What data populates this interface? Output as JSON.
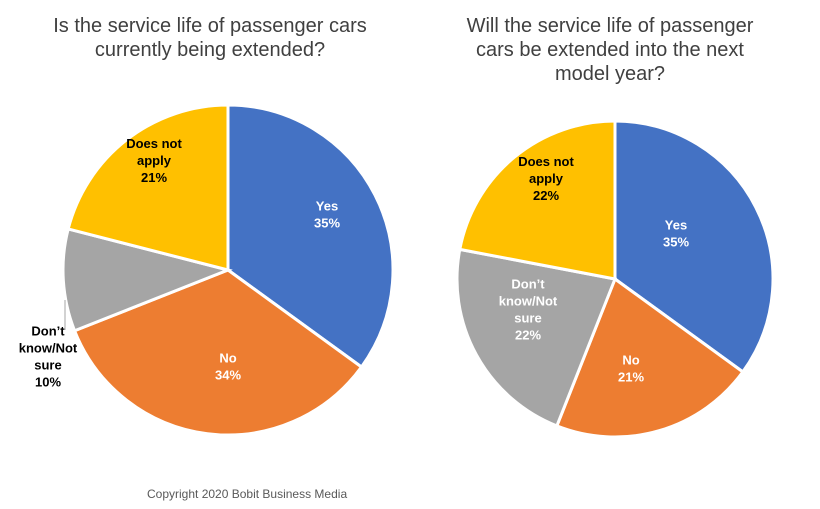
{
  "chart_data": [
    {
      "type": "pie",
      "title_lines": [
        "Is the service life of passenger cars",
        "currently being extended?"
      ],
      "slices": [
        {
          "label_lines": [
            "Yes",
            "35%"
          ],
          "value": 35,
          "color": "#4472C4",
          "label_color": "#FFFFFF"
        },
        {
          "label_lines": [
            "No",
            "34%"
          ],
          "value": 34,
          "color": "#ED7D31",
          "label_color": "#FFFFFF"
        },
        {
          "label_lines": [
            "Don’t",
            "know/Not",
            "sure",
            "10%"
          ],
          "value": 10,
          "color": "#A5A5A5",
          "label_color": "#000000"
        },
        {
          "label_lines": [
            "Does not",
            "apply",
            "21%"
          ],
          "value": 21,
          "color": "#FFC000",
          "label_color": "#000000"
        }
      ]
    },
    {
      "type": "pie",
      "title_lines": [
        "Will the service life of passenger",
        "cars be extended into the next",
        "model year?"
      ],
      "slices": [
        {
          "label_lines": [
            "Yes",
            "35%"
          ],
          "value": 35,
          "color": "#4472C4",
          "label_color": "#FFFFFF"
        },
        {
          "label_lines": [
            "No",
            "21%"
          ],
          "value": 21,
          "color": "#ED7D31",
          "label_color": "#FFFFFF"
        },
        {
          "label_lines": [
            "Don’t",
            "know/Not",
            "sure",
            "22%"
          ],
          "value": 22,
          "color": "#A5A5A5",
          "label_color": "#FFFFFF"
        },
        {
          "label_lines": [
            "Does not",
            "apply",
            "22%"
          ],
          "value": 22,
          "color": "#FFC000",
          "label_color": "#000000"
        }
      ]
    }
  ],
  "footer": {
    "copyright": "Copyright 2020 Bobit Business Media"
  }
}
